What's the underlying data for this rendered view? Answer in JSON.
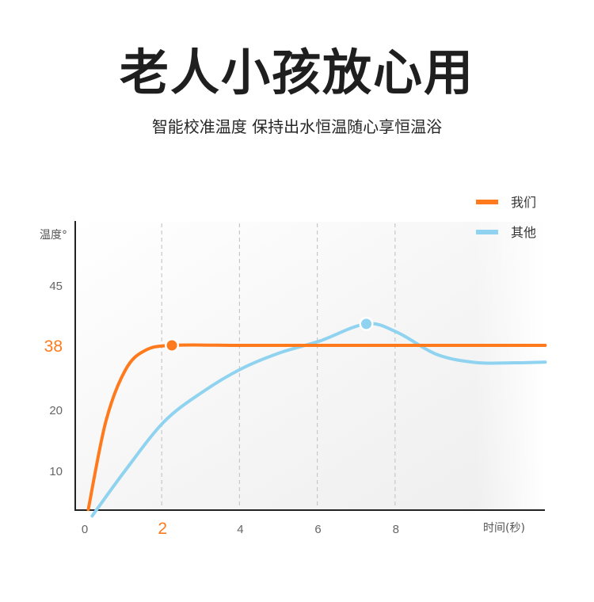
{
  "headline": "老人小孩放心用",
  "subline": "智能校准温度 保持出水恒温随心享恒温浴",
  "chart_data": {
    "type": "line",
    "ylabel": "温度°",
    "xlabel": "时间(秒)",
    "y_ticks": [
      {
        "value": 10,
        "label": "10",
        "highlight": false
      },
      {
        "value": 20,
        "label": "20",
        "highlight": false
      },
      {
        "value": 38,
        "label": "38",
        "highlight": true
      },
      {
        "value": 45,
        "label": "45",
        "highlight": false
      }
    ],
    "x_ticks": [
      {
        "value": 0,
        "label": "0",
        "highlight": false
      },
      {
        "value": 2,
        "label": "2",
        "highlight": true
      },
      {
        "value": 4,
        "label": "4",
        "highlight": false
      },
      {
        "value": 6,
        "label": "6",
        "highlight": false
      },
      {
        "value": 8,
        "label": "8",
        "highlight": false
      }
    ],
    "grid_x": [
      2,
      4,
      6,
      8
    ],
    "legend_position": "top-right",
    "series": [
      {
        "name": "我们",
        "color": "#ff7a1c",
        "x": [
          0.05,
          0.5,
          1.0,
          1.5,
          2.2,
          4,
          6,
          8,
          10,
          11.8
        ],
        "y": [
          4,
          18,
          31,
          36.5,
          38,
          38,
          38,
          38,
          38,
          38
        ],
        "marker": {
          "x": 2.2,
          "y": 38
        }
      },
      {
        "name": "其他",
        "color": "#8fd3f0",
        "x": [
          0.15,
          1,
          2,
          3,
          4,
          5,
          6,
          7.2,
          8,
          9,
          10,
          11,
          11.8
        ],
        "y": [
          3,
          10,
          18,
          25,
          31.5,
          36,
          38.5,
          40.5,
          39.5,
          35.5,
          33.2,
          33.1,
          33.3
        ],
        "marker": {
          "x": 7.2,
          "y": 40.5
        }
      }
    ]
  }
}
